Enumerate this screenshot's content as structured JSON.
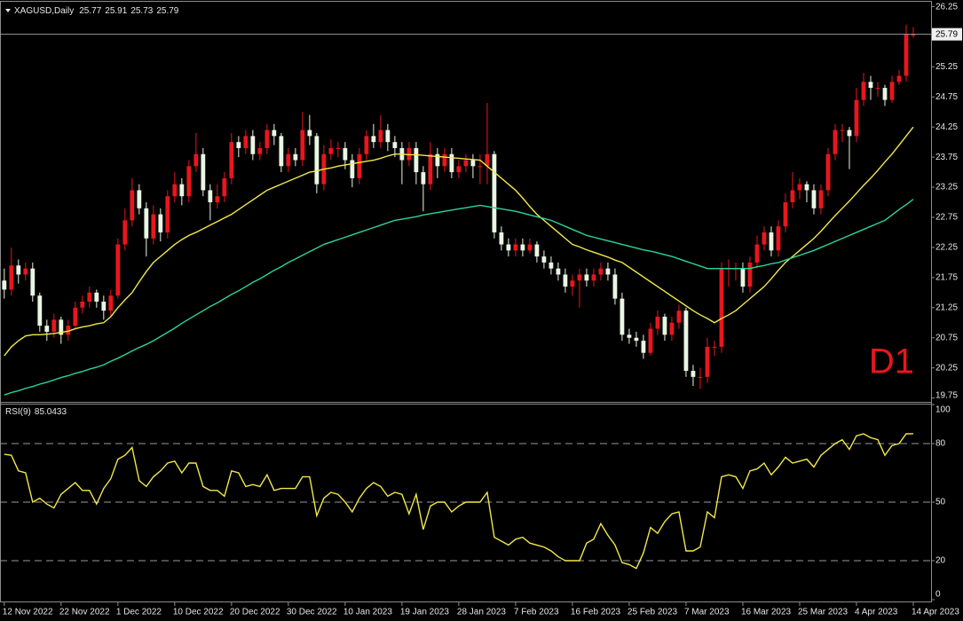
{
  "chart_data": [
    {
      "type": "candlestick",
      "title": "XAGUSD,Daily",
      "annotation": "D1",
      "up_color": "#e8161e",
      "down_color": "#e9f6e3",
      "open": [
        21.7,
        21.55,
        21.95,
        21.8,
        21.9,
        21.45,
        20.95,
        20.85,
        21.05,
        20.8,
        20.95,
        21.25,
        21.35,
        21.5,
        21.35,
        21.2,
        21.45,
        22.3,
        22.7,
        23.2,
        22.9,
        22.4,
        22.8,
        22.5,
        23.1,
        23.3,
        23.1,
        23.6,
        23.8,
        23.2,
        23.0,
        23.1,
        23.4,
        24.0,
        23.9,
        24.1,
        23.8,
        23.9,
        24.2,
        24.1,
        23.6,
        23.8,
        23.7,
        24.2,
        24.1,
        23.3,
        23.8,
        23.9,
        23.9,
        23.7,
        23.4,
        23.8,
        24.1,
        24.0,
        24.2,
        24.0,
        23.9,
        23.7,
        23.9,
        23.5,
        23.3,
        23.8,
        23.6,
        23.8,
        23.5,
        23.6,
        23.7,
        23.6,
        23.6,
        23.8,
        22.5,
        22.3,
        22.2,
        22.3,
        22.2,
        22.3,
        22.1,
        22.0,
        21.9,
        21.8,
        21.6,
        21.7,
        21.8,
        21.7,
        21.8,
        21.9,
        21.8,
        21.4,
        20.8,
        20.75,
        20.7,
        20.5,
        20.9,
        21.1,
        20.8,
        21.0,
        21.2,
        20.2,
        20.1,
        20.1,
        20.6,
        20.6,
        21.9,
        21.9,
        21.9,
        21.6,
        22.0,
        22.3,
        22.5,
        22.2,
        22.6,
        23.0,
        23.2,
        23.3,
        23.2,
        22.9,
        23.2,
        23.8,
        24.2,
        24.2,
        24.1,
        24.7,
        25.0,
        24.9,
        24.9,
        24.7,
        25.0,
        25.1,
        25.77
      ],
      "high": [
        21.9,
        22.25,
        22.05,
        22.0,
        22.0,
        21.5,
        21.05,
        21.15,
        21.1,
        21.05,
        21.35,
        21.45,
        21.6,
        21.55,
        21.45,
        21.55,
        22.4,
        22.9,
        23.4,
        23.3,
        23.0,
        22.95,
        22.9,
        23.2,
        23.5,
        23.4,
        23.7,
        24.15,
        23.9,
        23.3,
        23.3,
        23.5,
        24.15,
        24.1,
        24.2,
        24.2,
        24.0,
        24.3,
        24.3,
        24.15,
        23.9,
        23.9,
        24.5,
        24.45,
        24.15,
        23.95,
        24.05,
        24.0,
        24.0,
        23.8,
        23.9,
        24.2,
        24.3,
        24.45,
        24.3,
        24.1,
        24.0,
        24.0,
        24.0,
        23.6,
        24.0,
        23.9,
        23.9,
        23.9,
        23.7,
        23.8,
        23.8,
        23.8,
        24.65,
        23.85,
        22.6,
        22.4,
        22.4,
        22.4,
        22.4,
        22.35,
        22.2,
        22.1,
        22.0,
        21.9,
        21.8,
        21.9,
        21.9,
        21.9,
        22.0,
        22.0,
        21.9,
        21.5,
        20.9,
        20.85,
        20.8,
        21.0,
        21.2,
        21.15,
        21.1,
        21.3,
        21.25,
        20.3,
        20.25,
        20.75,
        20.7,
        22.0,
        22.05,
        22.0,
        22.0,
        22.1,
        22.45,
        22.6,
        22.6,
        22.7,
        23.15,
        23.5,
        23.4,
        23.35,
        23.3,
        23.3,
        23.9,
        24.3,
        24.3,
        24.25,
        24.9,
        25.15,
        25.1,
        25.0,
        24.95,
        25.1,
        25.2,
        25.95,
        25.91
      ],
      "low": [
        21.4,
        21.45,
        21.65,
        21.7,
        21.35,
        20.85,
        20.7,
        20.75,
        20.65,
        20.7,
        20.9,
        21.15,
        21.25,
        21.25,
        21.05,
        21.1,
        21.4,
        22.2,
        22.6,
        22.8,
        22.1,
        22.3,
        22.35,
        22.4,
        23.0,
        22.95,
        23.0,
        23.5,
        23.1,
        22.7,
        22.9,
        23.0,
        23.3,
        23.75,
        23.8,
        23.7,
        23.7,
        23.8,
        23.95,
        23.5,
        23.5,
        23.6,
        23.6,
        23.95,
        23.15,
        23.2,
        23.7,
        23.75,
        23.55,
        23.25,
        23.3,
        23.7,
        23.9,
        23.9,
        23.85,
        23.75,
        23.3,
        23.6,
        23.3,
        22.85,
        23.2,
        23.4,
        23.5,
        23.4,
        23.4,
        23.5,
        23.4,
        23.3,
        23.3,
        22.4,
        22.2,
        22.1,
        22.1,
        22.1,
        22.15,
        22.0,
        21.9,
        21.8,
        21.7,
        21.5,
        21.45,
        21.25,
        21.6,
        21.6,
        21.7,
        21.7,
        21.3,
        20.7,
        20.65,
        20.6,
        20.4,
        20.45,
        20.8,
        20.7,
        20.7,
        20.9,
        20.1,
        19.95,
        19.9,
        20.0,
        20.45,
        20.5,
        21.6,
        21.7,
        21.5,
        21.5,
        21.9,
        22.2,
        22.1,
        22.1,
        22.5,
        22.9,
        23.05,
        23.0,
        22.8,
        22.8,
        23.1,
        23.7,
        24.0,
        23.55,
        24.0,
        24.6,
        24.7,
        24.75,
        24.6,
        24.65,
        24.95,
        25.0,
        25.73
      ],
      "close": [
        21.55,
        21.95,
        21.8,
        21.9,
        21.45,
        20.95,
        20.85,
        21.05,
        20.8,
        20.95,
        21.25,
        21.35,
        21.5,
        21.35,
        21.2,
        21.45,
        22.3,
        22.7,
        23.2,
        22.9,
        22.4,
        22.8,
        22.5,
        23.1,
        23.3,
        23.1,
        23.6,
        23.8,
        23.2,
        23.0,
        23.1,
        23.4,
        24.0,
        23.9,
        24.1,
        23.8,
        23.9,
        24.2,
        24.1,
        23.6,
        23.8,
        23.7,
        24.2,
        24.1,
        23.3,
        23.8,
        23.9,
        23.9,
        23.7,
        23.4,
        23.8,
        24.1,
        24.0,
        24.2,
        24.0,
        23.9,
        23.7,
        23.9,
        23.5,
        23.3,
        23.8,
        23.6,
        23.8,
        23.5,
        23.6,
        23.7,
        23.6,
        23.6,
        23.8,
        22.5,
        22.3,
        22.2,
        22.3,
        22.2,
        22.3,
        22.1,
        22.0,
        21.9,
        21.8,
        21.6,
        21.7,
        21.8,
        21.7,
        21.8,
        21.9,
        21.8,
        21.4,
        20.8,
        20.75,
        20.7,
        20.5,
        20.9,
        21.1,
        20.8,
        21.0,
        21.2,
        20.2,
        20.1,
        20.1,
        20.6,
        20.6,
        21.9,
        21.9,
        21.9,
        21.6,
        22.0,
        22.3,
        22.5,
        22.2,
        22.6,
        23.0,
        23.2,
        23.3,
        23.2,
        22.9,
        23.2,
        23.8,
        24.2,
        24.2,
        24.1,
        24.7,
        25.0,
        24.9,
        24.9,
        24.7,
        25.0,
        25.1,
        25.8,
        25.79
      ],
      "series": [
        {
          "color": "#f2e84a",
          "values": [
            20.45,
            20.6,
            20.7,
            20.78,
            20.8,
            20.8,
            20.81,
            20.82,
            20.84,
            20.86,
            20.9,
            20.93,
            20.95,
            20.98,
            21.0,
            21.1,
            21.25,
            21.38,
            21.5,
            21.68,
            21.85,
            22.0,
            22.1,
            22.2,
            22.3,
            22.38,
            22.45,
            22.5,
            22.56,
            22.62,
            22.68,
            22.74,
            22.8,
            22.88,
            22.96,
            23.04,
            23.12,
            23.2,
            23.25,
            23.3,
            23.35,
            23.4,
            23.45,
            23.5,
            23.52,
            23.55,
            23.57,
            23.6,
            23.62,
            23.64,
            23.66,
            23.68,
            23.7,
            23.73,
            23.77,
            23.8,
            23.8,
            23.79,
            23.79,
            23.78,
            23.77,
            23.76,
            23.75,
            23.74,
            23.73,
            23.72,
            23.71,
            23.7,
            23.6,
            23.5,
            23.4,
            23.3,
            23.2,
            23.07,
            22.93,
            22.8,
            22.7,
            22.6,
            22.5,
            22.4,
            22.3,
            22.26,
            22.21,
            22.17,
            22.13,
            22.09,
            22.04,
            22.0,
            21.92,
            21.84,
            21.76,
            21.68,
            21.6,
            21.52,
            21.44,
            21.36,
            21.28,
            21.2,
            21.13,
            21.07,
            21.0,
            21.07,
            21.13,
            21.2,
            21.3,
            21.4,
            21.5,
            21.6,
            21.73,
            21.87,
            22.0,
            22.1,
            22.2,
            22.3,
            22.4,
            22.52,
            22.65,
            22.78,
            22.9,
            23.02,
            23.15,
            23.28,
            23.4,
            23.53,
            23.67,
            23.8,
            23.95,
            24.1,
            24.25
          ]
        },
        {
          "color": "#2bd49e",
          "values": [
            19.8,
            19.84,
            19.87,
            19.91,
            19.94,
            19.98,
            20.01,
            20.05,
            20.09,
            20.12,
            20.16,
            20.19,
            20.23,
            20.26,
            20.3,
            20.36,
            20.41,
            20.47,
            20.53,
            20.59,
            20.64,
            20.7,
            20.77,
            20.84,
            20.91,
            20.99,
            21.06,
            21.13,
            21.2,
            21.27,
            21.33,
            21.4,
            21.47,
            21.53,
            21.6,
            21.67,
            21.73,
            21.8,
            21.87,
            21.93,
            22.0,
            22.06,
            22.12,
            22.18,
            22.24,
            22.3,
            22.34,
            22.38,
            22.42,
            22.46,
            22.5,
            22.54,
            22.58,
            22.62,
            22.66,
            22.7,
            22.72,
            22.74,
            22.76,
            22.79,
            22.81,
            22.83,
            22.85,
            22.87,
            22.89,
            22.91,
            22.93,
            22.95,
            22.93,
            22.91,
            22.89,
            22.87,
            22.85,
            22.82,
            22.79,
            22.76,
            22.73,
            22.7,
            22.65,
            22.6,
            22.55,
            22.5,
            22.45,
            22.42,
            22.39,
            22.36,
            22.33,
            22.3,
            22.27,
            22.24,
            22.21,
            22.19,
            22.16,
            22.13,
            22.1,
            22.06,
            22.02,
            21.98,
            21.94,
            21.9,
            21.9,
            21.9,
            21.9,
            21.9,
            21.9,
            21.9,
            21.93,
            21.95,
            21.98,
            22.0,
            22.04,
            22.08,
            22.12,
            22.16,
            22.2,
            22.25,
            22.3,
            22.35,
            22.4,
            22.45,
            22.5,
            22.55,
            22.6,
            22.65,
            22.7,
            22.79,
            22.88,
            22.96,
            23.05
          ]
        }
      ],
      "xlim": [
        -0.6,
        130.5
      ],
      "ylim": [
        19.7,
        26.33
      ],
      "yticks": [
        19.75,
        20.25,
        20.75,
        21.25,
        21.75,
        22.25,
        22.75,
        23.25,
        23.75,
        24.25,
        24.75,
        25.25,
        26.25
      ]
    },
    {
      "type": "line",
      "title": "RSI(9)",
      "color": "#f2e84a",
      "values": [
        74.5,
        74,
        66,
        65,
        50,
        52,
        49,
        47,
        54,
        57,
        60,
        56,
        56,
        49,
        57,
        62,
        72,
        74,
        78,
        61,
        58,
        63,
        66,
        70,
        71,
        65,
        70,
        70,
        58,
        56,
        56,
        53,
        66,
        65,
        58,
        59,
        58,
        64,
        56,
        57,
        57,
        57,
        63,
        63,
        43,
        52,
        55,
        54,
        50,
        45,
        52,
        57,
        60,
        58,
        53,
        55,
        54,
        44,
        54,
        36,
        48,
        50,
        50,
        45,
        48,
        50,
        50,
        50,
        55,
        32,
        30,
        28,
        31,
        32,
        29,
        28,
        27,
        25,
        22,
        20,
        20,
        20,
        29,
        31,
        39,
        33,
        28,
        19,
        18,
        16,
        24,
        37,
        34,
        40,
        44,
        45,
        25,
        25,
        27,
        45,
        42,
        63,
        64,
        63,
        57,
        66,
        67,
        70,
        64,
        68,
        73,
        70,
        71,
        72,
        68,
        74,
        77,
        80,
        82,
        77,
        84,
        85,
        83,
        82,
        74,
        79,
        80,
        85,
        85.0433
      ],
      "xlim": [
        -0.6,
        130.5
      ],
      "ylim": [
        0,
        100
      ],
      "yticks": [
        0,
        20,
        50,
        80,
        100
      ],
      "levels": [
        20,
        50,
        80
      ],
      "xticks": [
        {
          "value": 0,
          "label": "12 Nov 2022"
        },
        {
          "value": 8,
          "label": "22 Nov 2022"
        },
        {
          "value": 16,
          "label": "1 Dec 2022"
        },
        {
          "value": 24,
          "label": "10 Dec 2022"
        },
        {
          "value": 32,
          "label": "20 Dec 2022"
        },
        {
          "value": 40,
          "label": "30 Dec 2022"
        },
        {
          "value": 48,
          "label": "10 Jan 2023"
        },
        {
          "value": 56,
          "label": "19 Jan 2023"
        },
        {
          "value": 64,
          "label": "28 Jan 2023"
        },
        {
          "value": 72,
          "label": "7 Feb 2023"
        },
        {
          "value": 80,
          "label": "16 Feb 2023"
        },
        {
          "value": 88,
          "label": "25 Feb 2023"
        },
        {
          "value": 96,
          "label": "7 Mar 2023"
        },
        {
          "value": 104,
          "label": "16 Mar 2023"
        },
        {
          "value": 112,
          "label": "25 Mar 2023"
        },
        {
          "value": 120,
          "label": "4 Apr 2023"
        },
        {
          "value": 128,
          "label": "14 Apr 2023"
        }
      ]
    }
  ]
}
